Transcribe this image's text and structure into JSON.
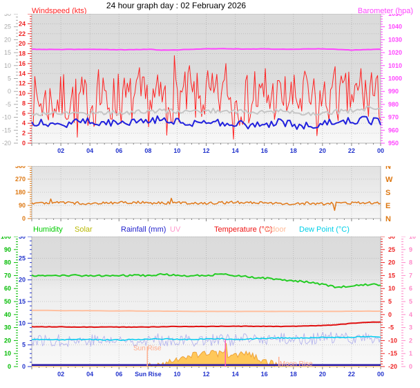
{
  "title": "24 hour graph day : 02 February 2026",
  "legend": {
    "items": [
      {
        "label": "Humidity",
        "color": "#00cc00"
      },
      {
        "label": "Solar",
        "color": "#b8b800"
      },
      {
        "label": "Rainfall (mm)",
        "color": "#2222cc"
      },
      {
        "label": "UV",
        "color": "#ff99cc"
      },
      {
        "label": "Temperature (°C)",
        "color": "#ee1111"
      },
      {
        "label": "Indoor",
        "color": "#ffbb99"
      },
      {
        "label": "Dew Point (°C)",
        "color": "#00d0e8"
      }
    ]
  },
  "chart_data": [
    {
      "name": "windspeed-barometer",
      "type": "line",
      "title_left": {
        "text": "Windspeed (kts)",
        "color": "#ff2222"
      },
      "title_right": {
        "text": "Barometer (hpa)",
        "color": "#ff44ff"
      },
      "x_axis": {
        "start_hour": 0,
        "end_hour": 24,
        "labels": [
          "02",
          "04",
          "06",
          "08",
          "10",
          "12",
          "14",
          "16",
          "18",
          "20",
          "22",
          "00"
        ],
        "label_color": "#2233cc"
      },
      "h_grid_axis": 1,
      "axes": [
        {
          "slot": "outer_left",
          "name": "outer-temperature-scale",
          "min": -20,
          "max": 30,
          "step": 5,
          "minor": 4,
          "color": "#a8a8a8",
          "bold": false,
          "tick_labels": [
            "30",
            "25",
            "20",
            "15",
            "10",
            "5",
            "0",
            "-5",
            "-10",
            "-15",
            "-20"
          ]
        },
        {
          "slot": "left",
          "name": "windspeed-scale",
          "min": 0,
          "max": 26,
          "label_max": 24,
          "step": 2,
          "minor": 4,
          "color": "#ee2222",
          "bold": true,
          "tick_labels": [
            "24",
            "22",
            "20",
            "18",
            "16",
            "14",
            "12",
            "10",
            "8",
            "6",
            "4",
            "2",
            "0"
          ]
        },
        {
          "slot": "right",
          "name": "barometer-scale",
          "min": 950,
          "max": 1050,
          "step": 10,
          "minor": 5,
          "color": "#ff44ff",
          "bold": true,
          "tick_labels": [
            "1050",
            "1040",
            "1030",
            "1020",
            "1010",
            "1000",
            "990",
            "980",
            "970",
            "960",
            "950"
          ]
        }
      ],
      "series": [
        {
          "name": "wind-gust",
          "axis": 1,
          "color": "#ff2222",
          "width": 1,
          "samples": 230,
          "seed": 7,
          "noise": 5.2,
          "clamp": [
            0.4,
            19
          ],
          "hourly": [
            8.5,
            8.2,
            8.4,
            8.6,
            8.3,
            8.5,
            8.8,
            8.6,
            8.4,
            9.0,
            9.4,
            9.0,
            8.8,
            9.2,
            8.8,
            8.6,
            9.0,
            9.2,
            8.8,
            8.4,
            8.6,
            9.0,
            9.4,
            9.2,
            8.8
          ],
          "spikes": [
            {
              "t": 2.2,
              "v": 13.8
            },
            {
              "t": 3.1,
              "v": 1.2
            },
            {
              "t": 4.6,
              "v": 14.8
            },
            {
              "t": 5.9,
              "v": 13.9
            },
            {
              "t": 7.4,
              "v": 15.2
            },
            {
              "t": 9.3,
              "v": 1.6
            },
            {
              "t": 9.85,
              "v": 17.6
            },
            {
              "t": 10.9,
              "v": 15.6
            },
            {
              "t": 12.1,
              "v": 14.6
            },
            {
              "t": 13.4,
              "v": 16.0
            },
            {
              "t": 13.9,
              "v": 0.8
            },
            {
              "t": 15.3,
              "v": 14.4
            },
            {
              "t": 16.1,
              "v": 15.0
            },
            {
              "t": 18.8,
              "v": 14.5
            },
            {
              "t": 19.6,
              "v": 1.5
            },
            {
              "t": 20.9,
              "v": 15.4
            },
            {
              "t": 22.6,
              "v": 15.0
            },
            {
              "t": 23.4,
              "v": 14.2
            }
          ]
        },
        {
          "name": "gust-trend",
          "axis": 1,
          "color": "#c6c6c6",
          "width": 2,
          "samples": 150,
          "seed": 17,
          "noise": 0.5,
          "hourly": [
            5.9,
            6.0,
            6.1,
            6.0,
            6.1,
            6.2,
            6.1,
            6.2,
            6.4,
            6.5,
            6.4,
            6.3,
            6.5,
            6.6,
            6.4,
            6.2,
            6.3,
            6.4,
            6.2,
            6.0,
            6.1,
            6.4,
            6.6,
            6.9,
            7.1
          ]
        },
        {
          "name": "wind-average",
          "axis": 1,
          "color": "#2020dd",
          "width": 2,
          "samples": 150,
          "seed": 27,
          "noise": 0.85,
          "hourly": [
            4.4,
            4.1,
            3.9,
            4.2,
            4.5,
            4.0,
            4.1,
            4.4,
            4.7,
            4.9,
            4.4,
            4.1,
            4.4,
            4.2,
            3.9,
            3.7,
            3.9,
            4.1,
            3.7,
            3.5,
            3.9,
            4.4,
            4.7,
            4.5,
            4.2
          ]
        },
        {
          "name": "barometer",
          "axis": 2,
          "color": "#ff44ff",
          "width": 2,
          "samples": 140,
          "seed": 37,
          "noise": 0.12,
          "hourly": [
            1022.6,
            1022.5,
            1022.4,
            1022.5,
            1022.6,
            1022.4,
            1022.2,
            1022.3,
            1022.6,
            1021.9,
            1022.1,
            1022.6,
            1022.9,
            1023.1,
            1022.9,
            1022.8,
            1022.9,
            1022.7,
            1022.6,
            1022.9,
            1023.0,
            1022.6,
            1022.0,
            1022.4,
            1022.6
          ]
        }
      ]
    },
    {
      "name": "wind-direction",
      "type": "line",
      "x_axis": {
        "start_hour": 0,
        "end_hour": 24,
        "labels": [],
        "label_color": "#2233cc"
      },
      "h_grid_axis": 0,
      "right_letters": {
        "color": "#dd7711",
        "letters": [
          "N",
          "W",
          "S",
          "E",
          "N"
        ]
      },
      "axes": [
        {
          "slot": "left",
          "name": "direction-scale",
          "min": 0,
          "max": 360,
          "step": 90,
          "minor": 6,
          "color": "#dd7711",
          "bold": true,
          "tick_labels": [
            "360",
            "270",
            "180",
            "90",
            "0"
          ]
        }
      ],
      "series": [
        {
          "name": "wind-direction",
          "axis": 0,
          "color": "#e07818",
          "width": 1.5,
          "samples": 220,
          "seed": 47,
          "noise": 9,
          "hourly": [
            106,
            109,
            111,
            106,
            104,
            107,
            109,
            111,
            108,
            106,
            109,
            107,
            105,
            108,
            111,
            109,
            106,
            103,
            101,
            105,
            99,
            108,
            106,
            109,
            108
          ],
          "spikes": [
            {
              "t": 1.3,
              "v": 134
            },
            {
              "t": 9.6,
              "v": 139
            },
            {
              "t": 20.85,
              "v": 56
            }
          ]
        }
      ]
    },
    {
      "name": "humidity-solar-rain-uv-temperature",
      "type": "line",
      "x_axis": {
        "start_hour": 0,
        "end_hour": 24,
        "labels": [
          "02",
          "04",
          "06",
          "Sun Rise",
          "10",
          "12",
          "14",
          "16",
          "18",
          "20",
          "22",
          "00"
        ],
        "label_color": "#2233cc"
      },
      "h_grid_axis": 1,
      "axes": [
        {
          "slot": "outer_left",
          "name": "humidity-scale",
          "min": 0,
          "max": 100,
          "step": 10,
          "minor": 5,
          "color": "#00bb00",
          "bold": true,
          "tick_labels": [
            "100",
            "90",
            "80",
            "70",
            "60",
            "50",
            "40",
            "30",
            "20",
            "10",
            "0"
          ]
        },
        {
          "slot": "left",
          "name": "rainfall-scale",
          "min": 0,
          "max": 30,
          "step": 5,
          "minor": 5,
          "color": "#2233cc",
          "bold": true,
          "tick_labels": [
            "30",
            "25",
            "20",
            "15",
            "10",
            "5",
            "0"
          ]
        },
        {
          "slot": "right",
          "name": "temperature-scale",
          "min": -20,
          "max": 30,
          "step": 5,
          "minor": 5,
          "color": "#ee2222",
          "bold": true,
          "tick_labels": [
            "30",
            "25",
            "20",
            "15",
            "10",
            "5",
            "0",
            "-5",
            "-10",
            "-15",
            "-20"
          ]
        },
        {
          "slot": "outer_right",
          "name": "uv-scale",
          "min": 0,
          "max": 10,
          "step": 1,
          "minor": 5,
          "color": "#ff88c8",
          "bold": true,
          "tick_labels": [
            "10",
            "9",
            "8",
            "7",
            "6",
            "5",
            "4",
            "3",
            "2",
            "1",
            "0"
          ]
        }
      ],
      "series": [
        {
          "name": "apparent-temperature",
          "axis": 2,
          "color": "#b8b8ee",
          "width": 1,
          "samples": 260,
          "seed": 77,
          "noise": 2.4,
          "hourly": [
            -9.8,
            -9.9,
            -10.0,
            -9.9,
            -9.8,
            -10.0,
            -10.1,
            -9.9,
            -9.8,
            -9.7,
            -9.8,
            -9.9,
            -9.7,
            -9.6,
            -9.8,
            -9.7,
            -9.5,
            -9.3,
            -9.4,
            -9.3,
            -9.1,
            -9.2,
            -9.0,
            -8.9,
            -9.0
          ]
        },
        {
          "name": "dew-point",
          "axis": 2,
          "color": "#00ccf0",
          "width": 1.5,
          "samples": 180,
          "seed": 87,
          "noise": 0.2,
          "hourly": [
            -9.5,
            -9.6,
            -9.7,
            -9.6,
            -9.5,
            -9.7,
            -9.8,
            -9.6,
            -9.5,
            -9.4,
            -9.5,
            -9.6,
            -9.4,
            -9.3,
            -9.5,
            -9.4,
            -9.2,
            -9.0,
            -9.1,
            -9.0,
            -8.8,
            -8.9,
            -8.7,
            -8.5,
            -8.6
          ]
        },
        {
          "name": "indoor",
          "axis": 2,
          "color": "#ffc0a0",
          "width": 2,
          "samples": 90,
          "seed": 97,
          "noise": 0.03,
          "hourly": [
            1.6,
            1.6,
            1.5,
            1.5,
            1.5,
            1.4,
            1.4,
            1.4,
            1.3,
            1.3,
            1.3,
            1.2,
            1.2,
            1.2,
            1.2,
            1.2,
            1.2,
            1.2,
            1.2,
            1.2,
            1.2,
            1.2,
            1.3,
            1.3,
            1.3
          ]
        },
        {
          "name": "temperature",
          "axis": 2,
          "color": "#e01010",
          "width": 2,
          "samples": 140,
          "seed": 107,
          "noise": 0.08,
          "hourly": [
            -4.7,
            -4.7,
            -4.7,
            -4.8,
            -4.8,
            -4.8,
            -4.8,
            -4.8,
            -4.8,
            -4.7,
            -4.6,
            -4.6,
            -4.6,
            -4.5,
            -4.5,
            -4.5,
            -4.5,
            -4.6,
            -4.5,
            -4.4,
            -4.2,
            -3.9,
            -3.4,
            -3.0,
            -2.8
          ]
        },
        {
          "name": "humidity",
          "axis": 0,
          "color": "#22cc22",
          "width": 2,
          "samples": 160,
          "seed": 57,
          "noise": 0.7,
          "hourly": [
            70,
            70,
            70,
            70,
            70,
            70,
            70,
            70,
            70,
            71,
            70,
            70,
            70,
            71,
            70,
            69,
            68,
            67,
            66,
            65,
            63,
            61,
            62,
            63,
            63
          ]
        },
        {
          "name": "solar",
          "axis": 1,
          "color": "#eda33c",
          "fill": "#ffc85a",
          "width": 1,
          "samples": 210,
          "seed": 67,
          "noise": 0.75,
          "zero_floor": true,
          "hourly": [
            0,
            0,
            0,
            0,
            0,
            0,
            0,
            0,
            0,
            0.6,
            1.8,
            2.7,
            3.1,
            2.9,
            2.6,
            2.9,
            1.3,
            0.1,
            0,
            0,
            0,
            0,
            0,
            0,
            0
          ],
          "spikes": [
            {
              "t": 13.32,
              "v": 5.4
            }
          ]
        },
        {
          "name": "rainfall",
          "axis": 1,
          "color": "#2818a8",
          "width": 2.5,
          "samples": 12,
          "seed": 117,
          "noise": 0,
          "hourly": [
            0.35,
            0.35,
            0.35,
            0.35,
            0.35,
            0.35,
            0.35,
            0.35,
            0.35,
            0.35,
            0.35,
            0.35,
            0.35,
            0.35,
            0.35,
            0.35,
            0.35,
            0.35,
            0.35,
            0.35,
            0.35,
            0.35,
            0.35,
            0.35,
            0.35
          ]
        }
      ],
      "annotations": {
        "vlines": [
          {
            "name": "sunrise-line",
            "t": 7.95,
            "color": "#ffb090",
            "y1": 0.845,
            "y2": 1.0
          },
          {
            "name": "uv-spike-line",
            "t": 13.32,
            "color": "#ff60b8",
            "y1": 0.79,
            "y2": 1.0
          },
          {
            "name": "moonrise-line",
            "t": 17.0,
            "color": "#ffb090",
            "y1": 0.925,
            "y2": 1.0
          }
        ],
        "labels": [
          {
            "name": "sunrise-label",
            "t": 7.95,
            "anchor": "middle",
            "y": 0.875,
            "text": "Sun Rise",
            "color": "#ffaa88"
          },
          {
            "name": "moonrise-label",
            "t": 17.05,
            "anchor": "start",
            "y": 0.995,
            "text": "Moon Rise",
            "color": "#ffaa88"
          }
        ]
      }
    }
  ]
}
